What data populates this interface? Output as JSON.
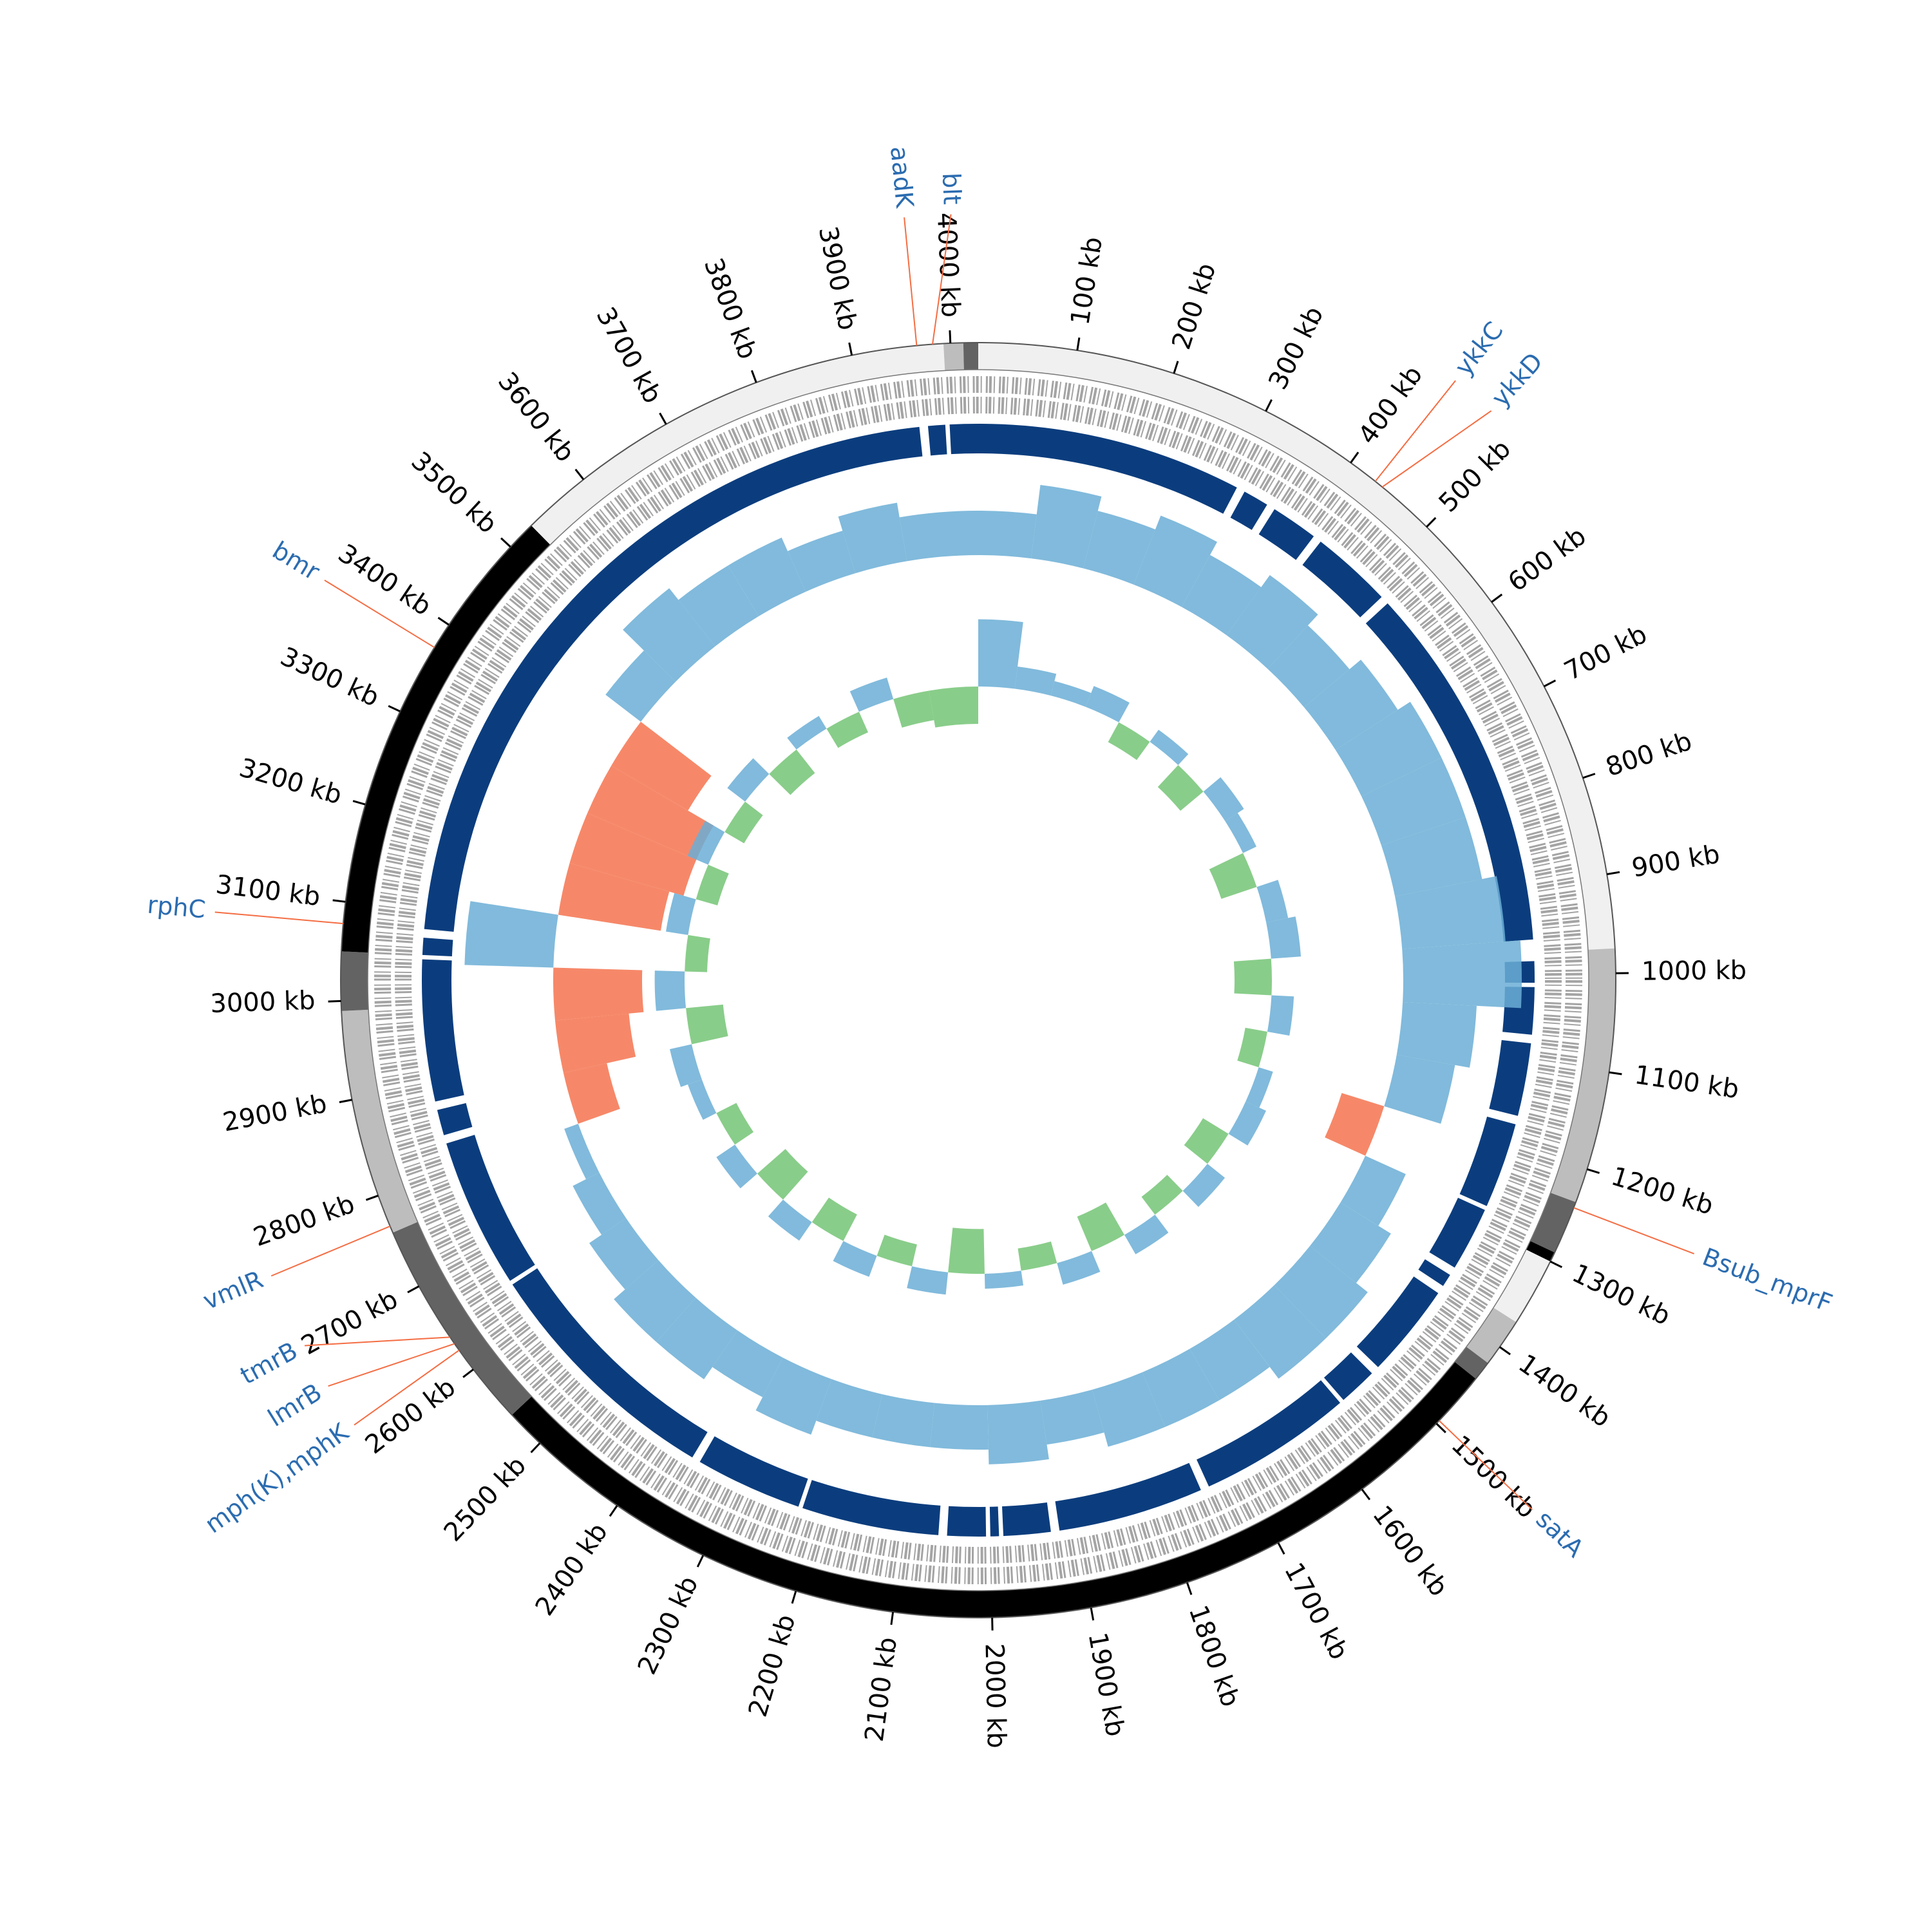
{
  "chart_data": {
    "type": "circos",
    "xlim": [
      0,
      4028
    ],
    "xticks": [
      {
        "value": 100,
        "label": "100 kb"
      },
      {
        "value": 200,
        "label": "200 kb"
      },
      {
        "value": 300,
        "label": "300 kb"
      },
      {
        "value": 400,
        "label": "400 kb"
      },
      {
        "value": 500,
        "label": "500 kb"
      },
      {
        "value": 600,
        "label": "600 kb"
      },
      {
        "value": 700,
        "label": "700 kb"
      },
      {
        "value": 800,
        "label": "800 kb"
      },
      {
        "value": 900,
        "label": "900 kb"
      },
      {
        "value": 1000,
        "label": "1000 kb"
      },
      {
        "value": 1100,
        "label": "1100 kb"
      },
      {
        "value": 1200,
        "label": "1200 kb"
      },
      {
        "value": 1300,
        "label": "1300 kb"
      },
      {
        "value": 1400,
        "label": "1400 kb"
      },
      {
        "value": 1500,
        "label": "1500 kb"
      },
      {
        "value": 1600,
        "label": "1600 kb"
      },
      {
        "value": 1700,
        "label": "1700 kb"
      },
      {
        "value": 1800,
        "label": "1800 kb"
      },
      {
        "value": 1900,
        "label": "1900 kb"
      },
      {
        "value": 2000,
        "label": "2000 kb"
      },
      {
        "value": 2100,
        "label": "2100 kb"
      },
      {
        "value": 2200,
        "label": "2200 kb"
      },
      {
        "value": 2300,
        "label": "2300 kb"
      },
      {
        "value": 2400,
        "label": "2400 kb"
      },
      {
        "value": 2500,
        "label": "2500 kb"
      },
      {
        "value": 2600,
        "label": "2600 kb"
      },
      {
        "value": 2700,
        "label": "2700 kb"
      },
      {
        "value": 2800,
        "label": "2800 kb"
      },
      {
        "value": 2900,
        "label": "2900 kb"
      },
      {
        "value": 3000,
        "label": "3000 kb"
      },
      {
        "value": 3100,
        "label": "3100 kb"
      },
      {
        "value": 3200,
        "label": "3200 kb"
      },
      {
        "value": 3300,
        "label": "3300 kb"
      },
      {
        "value": 3400,
        "label": "3400 kb"
      },
      {
        "value": 3500,
        "label": "3500 kb"
      },
      {
        "value": 3600,
        "label": "3600 kb"
      },
      {
        "value": 3700,
        "label": "3700 kb"
      },
      {
        "value": 3800,
        "label": "3800 kb"
      },
      {
        "value": 3900,
        "label": "3900 kb"
      },
      {
        "value": 4000,
        "label": "4000 kb"
      }
    ],
    "contigs": [
      {
        "start": 0,
        "end": 975,
        "color": "#f0f0f0"
      },
      {
        "start": 975,
        "end": 1235,
        "color": "#bdbdbd"
      },
      {
        "start": 1235,
        "end": 1290,
        "color": "#636363"
      },
      {
        "start": 1290,
        "end": 1300,
        "color": "#000000"
      },
      {
        "start": 1300,
        "end": 1370,
        "color": "#f0f0f0"
      },
      {
        "start": 1370,
        "end": 1420,
        "color": "#bdbdbd"
      },
      {
        "start": 1420,
        "end": 1440,
        "color": "#636363"
      },
      {
        "start": 1440,
        "end": 2540,
        "color": "#000000"
      },
      {
        "start": 2540,
        "end": 2760,
        "color": "#636363"
      },
      {
        "start": 2760,
        "end": 2990,
        "color": "#bdbdbd"
      },
      {
        "start": 2990,
        "end": 3050,
        "color": "#636363"
      },
      {
        "start": 3050,
        "end": 3530,
        "color": "#000000"
      },
      {
        "start": 3530,
        "end": 3993,
        "color": "#f0f0f0"
      },
      {
        "start": 3993,
        "end": 4013,
        "color": "#bdbdbd"
      },
      {
        "start": 4013,
        "end": 4028,
        "color": "#636363"
      }
    ],
    "blocks_color": "#0b3d7e",
    "blocks": [
      {
        "start": 0,
        "end": 310
      },
      {
        "start": 320,
        "end": 350
      },
      {
        "start": 360,
        "end": 415
      },
      {
        "start": 425,
        "end": 520
      },
      {
        "start": 530,
        "end": 960
      },
      {
        "start": 985,
        "end": 1010
      },
      {
        "start": 1015,
        "end": 1070
      },
      {
        "start": 1080,
        "end": 1165
      },
      {
        "start": 1175,
        "end": 1275
      },
      {
        "start": 1280,
        "end": 1355
      },
      {
        "start": 1365,
        "end": 1380
      },
      {
        "start": 1390,
        "end": 1500
      },
      {
        "start": 1510,
        "end": 1555
      },
      {
        "start": 1560,
        "end": 1740
      },
      {
        "start": 1750,
        "end": 1920
      },
      {
        "start": 1930,
        "end": 1985
      },
      {
        "start": 1990,
        "end": 2000
      },
      {
        "start": 2005,
        "end": 2050
      },
      {
        "start": 2060,
        "end": 2220
      },
      {
        "start": 2225,
        "end": 2350
      },
      {
        "start": 2360,
        "end": 2650
      },
      {
        "start": 2655,
        "end": 2830
      },
      {
        "start": 2840,
        "end": 2870
      },
      {
        "start": 2880,
        "end": 3045
      },
      {
        "start": 3050,
        "end": 3070
      },
      {
        "start": 3080,
        "end": 3960
      },
      {
        "start": 3970,
        "end": 3990
      },
      {
        "start": 3995,
        "end": 4028
      }
    ],
    "x": [
      0,
      80,
      160,
      240,
      320,
      400,
      480,
      560,
      640,
      720,
      800,
      880,
      960,
      1040,
      1120,
      1200,
      1280,
      1360,
      1440,
      1520,
      1600,
      1680,
      1760,
      1840,
      1920,
      2000,
      2080,
      2160,
      2240,
      2320,
      2400,
      2480,
      2560,
      2640,
      2720,
      2800,
      2880,
      2960,
      3040,
      3120,
      3200,
      3280,
      3360,
      3440,
      3520,
      3600,
      3680,
      3760,
      3840,
      3920
    ],
    "gc_skew": {
      "colors": [
        "#6baed6",
        "#f4734f"
      ],
      "values": [
        0.3,
        0.5,
        0.4,
        0.5,
        0.4,
        0.5,
        0.4,
        0.5,
        0.6,
        0.6,
        0.6,
        0.7,
        0.8,
        0.5,
        0.4,
        -0.3,
        0.3,
        0.4,
        0.5,
        0.5,
        0.4,
        0.4,
        0.4,
        0.3,
        0.4,
        0.3,
        0.3,
        0.3,
        0.4,
        0.3,
        0.4,
        0.4,
        0.3,
        0.2,
        0.1,
        -0.3,
        -0.5,
        -0.6,
        0.6,
        -0.7,
        -0.8,
        -0.8,
        -0.6,
        0.3,
        0.5,
        0.4,
        0.4,
        0.3,
        0.4,
        0.3
      ]
    },
    "gc_content": {
      "colors": [
        "#6baed6",
        "#74c476"
      ],
      "values": [
        0.9,
        0.3,
        0.2,
        0.3,
        -0.3,
        0.2,
        -0.4,
        0.3,
        0.2,
        -0.5,
        0.3,
        0.4,
        -0.5,
        0.3,
        -0.3,
        0.2,
        0.3,
        -0.4,
        0.3,
        -0.3,
        0.3,
        -0.5,
        0.3,
        -0.3,
        0.2,
        -0.6,
        0.3,
        -0.3,
        0.3,
        -0.4,
        0.3,
        -0.5,
        0.3,
        -0.3,
        0.2,
        0.3,
        -0.5,
        0.4,
        -0.3,
        0.3,
        -0.3,
        0.3,
        -0.3,
        0.3,
        -0.4,
        0.2,
        -0.3,
        0.3,
        -0.4,
        -0.5
      ]
    },
    "annotation_color": "#2b6cb0",
    "annotation_line_color": "#f46d43",
    "annotations": [
      {
        "label": "ykkC",
        "position": 431
      },
      {
        "label": "ykkD",
        "position": 440
      },
      {
        "label": "Bsub_mprF",
        "position": 1241
      },
      {
        "label": "satA",
        "position": 1496
      },
      {
        "label": "mph(K),mphK",
        "position": 2624
      },
      {
        "label": "lmrB",
        "position": 2632
      },
      {
        "label": "tmrB",
        "position": 2640
      },
      {
        "label": "vmlR",
        "position": 2767
      },
      {
        "label": "rphC",
        "position": 3078
      },
      {
        "label": "bmr",
        "position": 3373
      },
      {
        "label": "aadK",
        "position": 3966
      },
      {
        "label": "blt",
        "position": 3982
      }
    ]
  }
}
